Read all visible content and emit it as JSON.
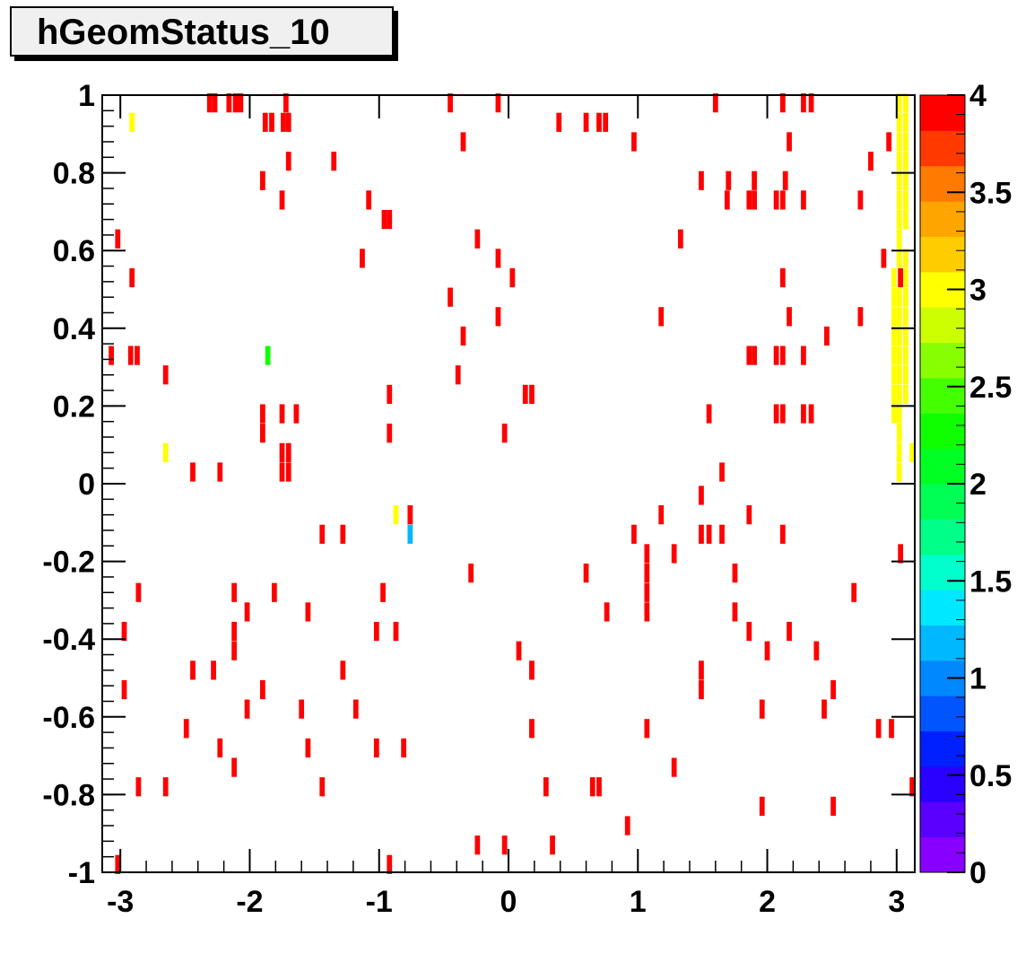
{
  "chart_data": {
    "type": "heatmap",
    "title": "hGeomStatus_10",
    "xlabel": "",
    "ylabel": "",
    "xlim": [
      -3.14,
      3.14
    ],
    "ylim": [
      -1,
      1
    ],
    "x_ticks": [
      "-3",
      "-2",
      "-1",
      "0",
      "1",
      "2",
      "3"
    ],
    "y_ticks": [
      "-1",
      "-0.8",
      "-0.6",
      "-0.4",
      "-0.2",
      "0",
      "0.2",
      "0.4",
      "0.6",
      "0.8",
      "1"
    ],
    "z_range": [
      0,
      4
    ],
    "z_ticks": [
      "0",
      "0.5",
      "1",
      "1.5",
      "2",
      "2.5",
      "3",
      "3.5",
      "4"
    ],
    "bin_width": [
      0.05,
      0.05
    ],
    "palette": [
      "#8800ff",
      "#5a00ff",
      "#2a00ff",
      "#0020ff",
      "#0055ff",
      "#0088ff",
      "#00b8ff",
      "#00e8ff",
      "#00ffcc",
      "#00ff88",
      "#00ff55",
      "#00ff22",
      "#10ff00",
      "#44ff00",
      "#88ff00",
      "#ccff00",
      "#ffff00",
      "#ffcc00",
      "#ffa500",
      "#ff7a00",
      "#ff3a00",
      "#ff0000"
    ],
    "cells": [
      {
        "x": -2.31,
        "y": 0.98,
        "z": 4
      },
      {
        "x": -2.27,
        "y": 0.98,
        "z": 4
      },
      {
        "x": -2.16,
        "y": 0.98,
        "z": 4
      },
      {
        "x": -2.11,
        "y": 0.98,
        "z": 4
      },
      {
        "x": -2.07,
        "y": 0.98,
        "z": 4
      },
      {
        "x": -1.72,
        "y": 0.98,
        "z": 4
      },
      {
        "x": -0.45,
        "y": 0.98,
        "z": 4
      },
      {
        "x": -0.08,
        "y": 0.98,
        "z": 4
      },
      {
        "x": 1.6,
        "y": 0.98,
        "z": 4
      },
      {
        "x": 2.12,
        "y": 0.98,
        "z": 4
      },
      {
        "x": 2.28,
        "y": 0.98,
        "z": 4
      },
      {
        "x": 2.34,
        "y": 0.98,
        "z": 4
      },
      {
        "x": -2.91,
        "y": 0.93,
        "z": 3
      },
      {
        "x": -1.88,
        "y": 0.93,
        "z": 4
      },
      {
        "x": -1.83,
        "y": 0.93,
        "z": 4
      },
      {
        "x": -1.74,
        "y": 0.93,
        "z": 4
      },
      {
        "x": -1.7,
        "y": 0.93,
        "z": 4
      },
      {
        "x": 0.39,
        "y": 0.93,
        "z": 4
      },
      {
        "x": 0.6,
        "y": 0.93,
        "z": 4
      },
      {
        "x": 0.7,
        "y": 0.93,
        "z": 4
      },
      {
        "x": 0.75,
        "y": 0.93,
        "z": 4
      },
      {
        "x": 3.02,
        "y": 0.98,
        "z": 3
      },
      {
        "x": 3.07,
        "y": 0.98,
        "z": 3
      },
      {
        "x": -0.35,
        "y": 0.88,
        "z": 4
      },
      {
        "x": 0.97,
        "y": 0.88,
        "z": 4
      },
      {
        "x": 2.17,
        "y": 0.88,
        "z": 4
      },
      {
        "x": 2.94,
        "y": 0.88,
        "z": 4
      },
      {
        "x": -1.7,
        "y": 0.83,
        "z": 4
      },
      {
        "x": -1.35,
        "y": 0.83,
        "z": 4
      },
      {
        "x": 2.8,
        "y": 0.83,
        "z": 4
      },
      {
        "x": -1.9,
        "y": 0.78,
        "z": 4
      },
      {
        "x": 1.49,
        "y": 0.78,
        "z": 4
      },
      {
        "x": 1.7,
        "y": 0.78,
        "z": 4
      },
      {
        "x": 1.9,
        "y": 0.78,
        "z": 4
      },
      {
        "x": 2.14,
        "y": 0.78,
        "z": 4
      },
      {
        "x": -1.75,
        "y": 0.73,
        "z": 4
      },
      {
        "x": -1.08,
        "y": 0.73,
        "z": 4
      },
      {
        "x": 1.69,
        "y": 0.73,
        "z": 4
      },
      {
        "x": 1.86,
        "y": 0.73,
        "z": 4
      },
      {
        "x": 1.9,
        "y": 0.73,
        "z": 4
      },
      {
        "x": 2.07,
        "y": 0.73,
        "z": 4
      },
      {
        "x": 2.12,
        "y": 0.73,
        "z": 4
      },
      {
        "x": 2.28,
        "y": 0.73,
        "z": 4
      },
      {
        "x": 2.72,
        "y": 0.73,
        "z": 4
      },
      {
        "x": -0.96,
        "y": 0.68,
        "z": 4
      },
      {
        "x": -0.92,
        "y": 0.68,
        "z": 4
      },
      {
        "x": -3.02,
        "y": 0.63,
        "z": 4
      },
      {
        "x": -0.24,
        "y": 0.63,
        "z": 4
      },
      {
        "x": 1.33,
        "y": 0.63,
        "z": 4
      },
      {
        "x": -1.13,
        "y": 0.58,
        "z": 4
      },
      {
        "x": -0.08,
        "y": 0.58,
        "z": 4
      },
      {
        "x": 2.9,
        "y": 0.58,
        "z": 4
      },
      {
        "x": -2.91,
        "y": 0.53,
        "z": 4
      },
      {
        "x": 0.03,
        "y": 0.53,
        "z": 4
      },
      {
        "x": 2.12,
        "y": 0.53,
        "z": 4
      },
      {
        "x": 3.03,
        "y": 0.53,
        "z": 4
      },
      {
        "x": -0.45,
        "y": 0.48,
        "z": 4
      },
      {
        "x": -0.08,
        "y": 0.43,
        "z": 4
      },
      {
        "x": 1.18,
        "y": 0.43,
        "z": 4
      },
      {
        "x": 2.17,
        "y": 0.43,
        "z": 4
      },
      {
        "x": 2.72,
        "y": 0.43,
        "z": 4
      },
      {
        "x": -0.35,
        "y": 0.38,
        "z": 4
      },
      {
        "x": 2.46,
        "y": 0.38,
        "z": 4
      },
      {
        "x": -3.07,
        "y": 0.33,
        "z": 4
      },
      {
        "x": -2.92,
        "y": 0.33,
        "z": 4
      },
      {
        "x": -2.87,
        "y": 0.33,
        "z": 4
      },
      {
        "x": -1.86,
        "y": 0.33,
        "z": 2.2
      },
      {
        "x": 1.86,
        "y": 0.33,
        "z": 4
      },
      {
        "x": 1.9,
        "y": 0.33,
        "z": 4
      },
      {
        "x": 2.07,
        "y": 0.33,
        "z": 4
      },
      {
        "x": 2.12,
        "y": 0.33,
        "z": 4
      },
      {
        "x": 2.28,
        "y": 0.33,
        "z": 4
      },
      {
        "x": -2.65,
        "y": 0.28,
        "z": 4
      },
      {
        "x": -0.39,
        "y": 0.28,
        "z": 4
      },
      {
        "x": -0.92,
        "y": 0.23,
        "z": 4
      },
      {
        "x": 0.13,
        "y": 0.23,
        "z": 4
      },
      {
        "x": 0.18,
        "y": 0.23,
        "z": 4
      },
      {
        "x": -1.9,
        "y": 0.18,
        "z": 4
      },
      {
        "x": -1.75,
        "y": 0.18,
        "z": 4
      },
      {
        "x": -1.64,
        "y": 0.18,
        "z": 4
      },
      {
        "x": 1.55,
        "y": 0.18,
        "z": 4
      },
      {
        "x": 2.07,
        "y": 0.18,
        "z": 4
      },
      {
        "x": 2.12,
        "y": 0.18,
        "z": 4
      },
      {
        "x": 2.28,
        "y": 0.18,
        "z": 4
      },
      {
        "x": 2.34,
        "y": 0.18,
        "z": 4
      },
      {
        "x": -1.9,
        "y": 0.13,
        "z": 4
      },
      {
        "x": -0.92,
        "y": 0.13,
        "z": 4
      },
      {
        "x": -0.03,
        "y": 0.13,
        "z": 4
      },
      {
        "x": -2.65,
        "y": 0.08,
        "z": 3
      },
      {
        "x": -1.75,
        "y": 0.08,
        "z": 4
      },
      {
        "x": -1.7,
        "y": 0.08,
        "z": 4
      },
      {
        "x": 3.12,
        "y": 0.08,
        "z": 3
      },
      {
        "x": -2.44,
        "y": 0.03,
        "z": 4
      },
      {
        "x": -2.23,
        "y": 0.03,
        "z": 4
      },
      {
        "x": -1.75,
        "y": 0.03,
        "z": 4
      },
      {
        "x": -1.7,
        "y": 0.03,
        "z": 4
      },
      {
        "x": 1.65,
        "y": 0.03,
        "z": 4
      },
      {
        "x": 1.49,
        "y": -0.03,
        "z": 4
      },
      {
        "x": -0.87,
        "y": -0.08,
        "z": 3
      },
      {
        "x": -0.76,
        "y": -0.08,
        "z": 4
      },
      {
        "x": 1.18,
        "y": -0.08,
        "z": 4
      },
      {
        "x": 1.86,
        "y": -0.08,
        "z": 4
      },
      {
        "x": -1.44,
        "y": -0.13,
        "z": 4
      },
      {
        "x": -1.28,
        "y": -0.13,
        "z": 4
      },
      {
        "x": -0.76,
        "y": -0.13,
        "z": 1.1
      },
      {
        "x": 0.97,
        "y": -0.13,
        "z": 4
      },
      {
        "x": 1.49,
        "y": -0.13,
        "z": 4
      },
      {
        "x": 1.55,
        "y": -0.13,
        "z": 4
      },
      {
        "x": 1.65,
        "y": -0.13,
        "z": 4
      },
      {
        "x": 2.12,
        "y": -0.13,
        "z": 4
      },
      {
        "x": 1.07,
        "y": -0.18,
        "z": 4
      },
      {
        "x": 1.28,
        "y": -0.18,
        "z": 4
      },
      {
        "x": 3.03,
        "y": -0.18,
        "z": 4
      },
      {
        "x": -0.29,
        "y": -0.23,
        "z": 4
      },
      {
        "x": 0.6,
        "y": -0.23,
        "z": 4
      },
      {
        "x": 1.07,
        "y": -0.23,
        "z": 4
      },
      {
        "x": 1.75,
        "y": -0.23,
        "z": 4
      },
      {
        "x": -2.86,
        "y": -0.28,
        "z": 4
      },
      {
        "x": -2.12,
        "y": -0.28,
        "z": 4
      },
      {
        "x": -1.81,
        "y": -0.28,
        "z": 4
      },
      {
        "x": -0.97,
        "y": -0.28,
        "z": 4
      },
      {
        "x": 1.07,
        "y": -0.28,
        "z": 4
      },
      {
        "x": 2.67,
        "y": -0.28,
        "z": 4
      },
      {
        "x": -2.02,
        "y": -0.33,
        "z": 4
      },
      {
        "x": -1.55,
        "y": -0.33,
        "z": 4
      },
      {
        "x": 0.76,
        "y": -0.33,
        "z": 4
      },
      {
        "x": 1.07,
        "y": -0.33,
        "z": 4
      },
      {
        "x": 1.75,
        "y": -0.33,
        "z": 4
      },
      {
        "x": -2.97,
        "y": -0.38,
        "z": 4
      },
      {
        "x": -2.12,
        "y": -0.38,
        "z": 4
      },
      {
        "x": -1.02,
        "y": -0.38,
        "z": 4
      },
      {
        "x": -0.87,
        "y": -0.38,
        "z": 4
      },
      {
        "x": 1.86,
        "y": -0.38,
        "z": 4
      },
      {
        "x": 2.17,
        "y": -0.38,
        "z": 4
      },
      {
        "x": -2.12,
        "y": -0.43,
        "z": 4
      },
      {
        "x": 0.08,
        "y": -0.43,
        "z": 4
      },
      {
        "x": 2.0,
        "y": -0.43,
        "z": 4
      },
      {
        "x": 2.38,
        "y": -0.43,
        "z": 4
      },
      {
        "x": -2.44,
        "y": -0.48,
        "z": 4
      },
      {
        "x": -2.28,
        "y": -0.48,
        "z": 4
      },
      {
        "x": -1.28,
        "y": -0.48,
        "z": 4
      },
      {
        "x": 0.18,
        "y": -0.48,
        "z": 4
      },
      {
        "x": 1.49,
        "y": -0.48,
        "z": 4
      },
      {
        "x": -2.97,
        "y": -0.53,
        "z": 4
      },
      {
        "x": -1.9,
        "y": -0.53,
        "z": 4
      },
      {
        "x": 1.49,
        "y": -0.53,
        "z": 4
      },
      {
        "x": 2.51,
        "y": -0.53,
        "z": 4
      },
      {
        "x": -2.02,
        "y": -0.58,
        "z": 4
      },
      {
        "x": -1.6,
        "y": -0.58,
        "z": 4
      },
      {
        "x": -1.18,
        "y": -0.58,
        "z": 4
      },
      {
        "x": 1.96,
        "y": -0.58,
        "z": 4
      },
      {
        "x": 2.44,
        "y": -0.58,
        "z": 4
      },
      {
        "x": -2.49,
        "y": -0.63,
        "z": 4
      },
      {
        "x": 0.18,
        "y": -0.63,
        "z": 4
      },
      {
        "x": 1.07,
        "y": -0.63,
        "z": 4
      },
      {
        "x": 2.86,
        "y": -0.63,
        "z": 4
      },
      {
        "x": 2.96,
        "y": -0.63,
        "z": 4
      },
      {
        "x": -2.23,
        "y": -0.68,
        "z": 4
      },
      {
        "x": -1.55,
        "y": -0.68,
        "z": 4
      },
      {
        "x": -1.02,
        "y": -0.68,
        "z": 4
      },
      {
        "x": -0.81,
        "y": -0.68,
        "z": 4
      },
      {
        "x": -2.12,
        "y": -0.73,
        "z": 4
      },
      {
        "x": 1.28,
        "y": -0.73,
        "z": 4
      },
      {
        "x": -2.86,
        "y": -0.78,
        "z": 4
      },
      {
        "x": -2.65,
        "y": -0.78,
        "z": 4
      },
      {
        "x": -1.44,
        "y": -0.78,
        "z": 4
      },
      {
        "x": 0.29,
        "y": -0.78,
        "z": 4
      },
      {
        "x": 0.65,
        "y": -0.78,
        "z": 4
      },
      {
        "x": 0.7,
        "y": -0.78,
        "z": 4
      },
      {
        "x": 3.12,
        "y": -0.78,
        "z": 4
      },
      {
        "x": 1.96,
        "y": -0.83,
        "z": 4
      },
      {
        "x": 2.51,
        "y": -0.83,
        "z": 4
      },
      {
        "x": 0.92,
        "y": -0.88,
        "z": 4
      },
      {
        "x": -0.24,
        "y": -0.93,
        "z": 4
      },
      {
        "x": -0.03,
        "y": -0.93,
        "z": 4
      },
      {
        "x": 0.34,
        "y": -0.93,
        "z": 4
      },
      {
        "x": -3.02,
        "y": -0.98,
        "z": 4
      },
      {
        "x": -0.92,
        "y": -0.98,
        "z": 4
      }
    ],
    "yellow_band": [
      {
        "x": 3.02,
        "y": 0.93,
        "z": 3
      },
      {
        "x": 3.07,
        "y": 0.93,
        "z": 3
      },
      {
        "x": 3.02,
        "y": 0.88,
        "z": 3
      },
      {
        "x": 3.07,
        "y": 0.88,
        "z": 3
      },
      {
        "x": 3.02,
        "y": 0.83,
        "z": 3
      },
      {
        "x": 3.07,
        "y": 0.83,
        "z": 3
      },
      {
        "x": 3.02,
        "y": 0.78,
        "z": 3
      },
      {
        "x": 3.07,
        "y": 0.78,
        "z": 3
      },
      {
        "x": 3.02,
        "y": 0.73,
        "z": 3
      },
      {
        "x": 3.07,
        "y": 0.73,
        "z": 3
      },
      {
        "x": 3.02,
        "y": 0.68,
        "z": 3
      },
      {
        "x": 3.07,
        "y": 0.68,
        "z": 3
      },
      {
        "x": 3.02,
        "y": 0.63,
        "z": 3
      },
      {
        "x": 3.02,
        "y": 0.58,
        "z": 3
      },
      {
        "x": 3.07,
        "y": 0.58,
        "z": 3
      },
      {
        "x": 2.98,
        "y": 0.53,
        "z": 3
      },
      {
        "x": 3.07,
        "y": 0.53,
        "z": 3
      },
      {
        "x": 2.98,
        "y": 0.48,
        "z": 3
      },
      {
        "x": 3.02,
        "y": 0.48,
        "z": 3
      },
      {
        "x": 3.07,
        "y": 0.48,
        "z": 3
      },
      {
        "x": 2.98,
        "y": 0.43,
        "z": 3
      },
      {
        "x": 3.02,
        "y": 0.43,
        "z": 3
      },
      {
        "x": 3.07,
        "y": 0.43,
        "z": 3
      },
      {
        "x": 2.98,
        "y": 0.38,
        "z": 3
      },
      {
        "x": 3.02,
        "y": 0.38,
        "z": 3
      },
      {
        "x": 3.07,
        "y": 0.38,
        "z": 3
      },
      {
        "x": 2.98,
        "y": 0.33,
        "z": 3
      },
      {
        "x": 3.02,
        "y": 0.33,
        "z": 3
      },
      {
        "x": 3.07,
        "y": 0.33,
        "z": 3
      },
      {
        "x": 2.98,
        "y": 0.28,
        "z": 3
      },
      {
        "x": 3.02,
        "y": 0.28,
        "z": 3
      },
      {
        "x": 3.07,
        "y": 0.28,
        "z": 3
      },
      {
        "x": 2.98,
        "y": 0.23,
        "z": 3
      },
      {
        "x": 3.02,
        "y": 0.23,
        "z": 3
      },
      {
        "x": 3.07,
        "y": 0.23,
        "z": 3
      },
      {
        "x": 2.98,
        "y": 0.18,
        "z": 3
      },
      {
        "x": 3.02,
        "y": 0.18,
        "z": 3
      },
      {
        "x": 3.02,
        "y": 0.13,
        "z": 3
      },
      {
        "x": 3.02,
        "y": 0.08,
        "z": 3
      },
      {
        "x": 3.02,
        "y": 0.03,
        "z": 3
      }
    ]
  }
}
